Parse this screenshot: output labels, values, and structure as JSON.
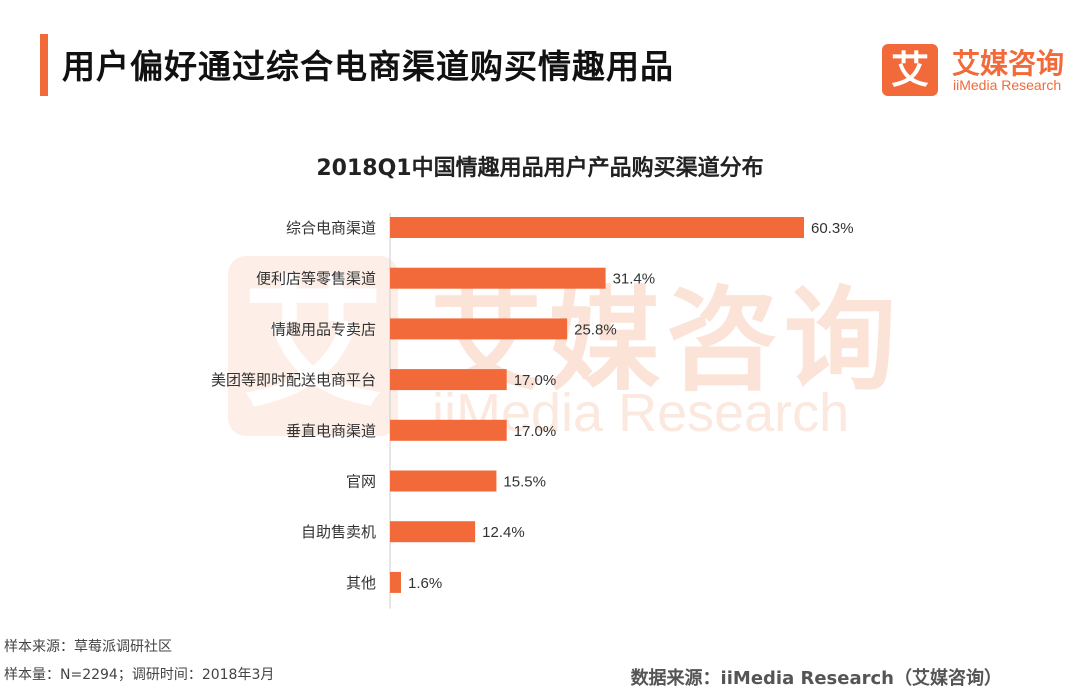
{
  "header": {
    "title": "用户偏好通过综合电商渠道购买情趣用品",
    "logo_mark": "艾",
    "logo_cn": "艾媒咨询",
    "logo_en": "iiMedia Research"
  },
  "watermark": {
    "mark": "艾",
    "cn": "艾媒咨询",
    "en": "iiMedia Research"
  },
  "chart_data": {
    "type": "bar",
    "orientation": "horizontal",
    "title": "2018Q1中国情趣用品用户产品购买渠道分布",
    "categories": [
      "综合电商渠道",
      "便利店等零售渠道",
      "情趣用品专卖店",
      "美团等即时配送电商平台",
      "垂直电商渠道",
      "官网",
      "自助售卖机",
      "其他"
    ],
    "values": [
      60.3,
      31.4,
      25.8,
      17.0,
      17.0,
      15.5,
      12.4,
      1.6
    ],
    "labels": [
      "60.3%",
      "31.4%",
      "25.8%",
      "17.0%",
      "17.0%",
      "15.5%",
      "12.4%",
      "1.6%"
    ],
    "xlim": [
      0,
      60.3
    ],
    "bar_color": "#f26a3a",
    "xlabel": "",
    "ylabel": ""
  },
  "footer": {
    "sample_source": "样本来源：草莓派调研社区",
    "sample_size": "样本量：N=2294；调研时间：2018年3月",
    "data_source": "数据来源：iiMedia Research（艾媒咨询）"
  },
  "colors": {
    "accent": "#f26a3a"
  }
}
